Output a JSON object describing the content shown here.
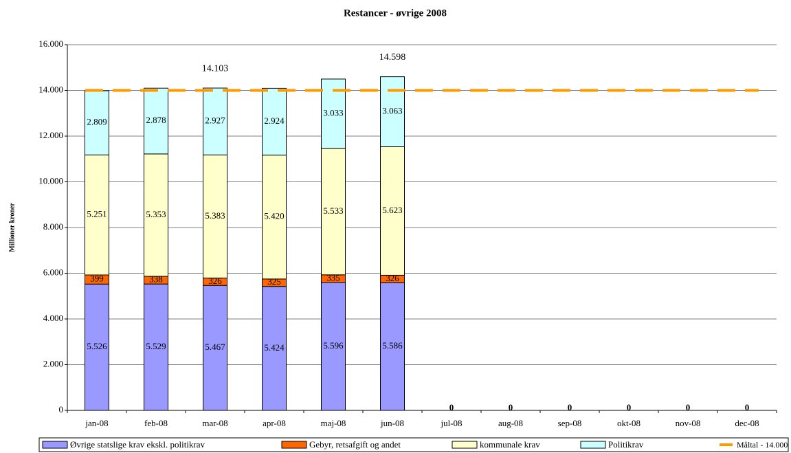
{
  "chart_data": {
    "type": "stacked_bar",
    "title": "Restancer - øvrige 2008",
    "y_label": "Millioner kroner",
    "categories": [
      "jan-08",
      "feb-08",
      "mar-08",
      "apr-08",
      "maj-08",
      "jun-08",
      "jul-08",
      "aug-08",
      "sep-08",
      "okt-08",
      "nov-08",
      "dec-08"
    ],
    "series": [
      {
        "name": "Øvrige statslige krav ekskl. politikrav",
        "color": "#9999ff",
        "values": [
          5526,
          5529,
          5467,
          5424,
          5596,
          5586,
          0,
          0,
          0,
          0,
          0,
          0
        ],
        "value_labels": [
          "5.526",
          "5.529",
          "5.467",
          "5.424",
          "5.596",
          "5.586",
          "0",
          "0",
          "0",
          "0",
          "0",
          "0"
        ]
      },
      {
        "name": "Gebyr, retsafgift og andet",
        "color": "#ff6600",
        "values": [
          399,
          338,
          326,
          325,
          335,
          326,
          null,
          null,
          null,
          null,
          null,
          null
        ]
      },
      {
        "name": "kommunale krav",
        "color": "#ffffcc",
        "values": [
          5251,
          5353,
          5383,
          5420,
          5533,
          5623,
          null,
          null,
          null,
          null,
          null,
          null
        ],
        "value_labels": [
          "5.251",
          "5.353",
          "5.383",
          "5.420",
          "5.533",
          "5.623",
          null,
          null,
          null,
          null,
          null,
          null
        ]
      },
      {
        "name": "Politikrav",
        "color": "#ccffff",
        "values": [
          2809,
          2878,
          2927,
          2924,
          3033,
          3063,
          null,
          null,
          null,
          null,
          null,
          null
        ],
        "value_labels": [
          "2.809",
          "2.878",
          "2.927",
          "2.924",
          "3.033",
          "3.063",
          null,
          null,
          null,
          null,
          null,
          null
        ]
      }
    ],
    "target": {
      "name": "Måltal - 14.000",
      "value": 14000,
      "color": "#ff9900"
    },
    "annotations": [
      {
        "text": "14.103",
        "value": 14103,
        "category": "mar-08"
      },
      {
        "text": "14.598",
        "value": 14598,
        "category": "jun-08"
      }
    ],
    "ylim": [
      0,
      16000
    ],
    "yticks": [
      0,
      {
        "value": 2000,
        "label": "2.000"
      },
      {
        "value": 4000,
        "label": "4.000"
      },
      {
        "value": 6000,
        "label": "6.000"
      },
      {
        "value": 8000,
        "label": "8.000"
      },
      {
        "value": 10000,
        "label": "10.000"
      },
      {
        "value": 12000,
        "label": "12.000"
      },
      {
        "value": 14000,
        "label": "14.000"
      },
      {
        "value": 16000,
        "label": "16.000"
      }
    ],
    "grid": true
  }
}
